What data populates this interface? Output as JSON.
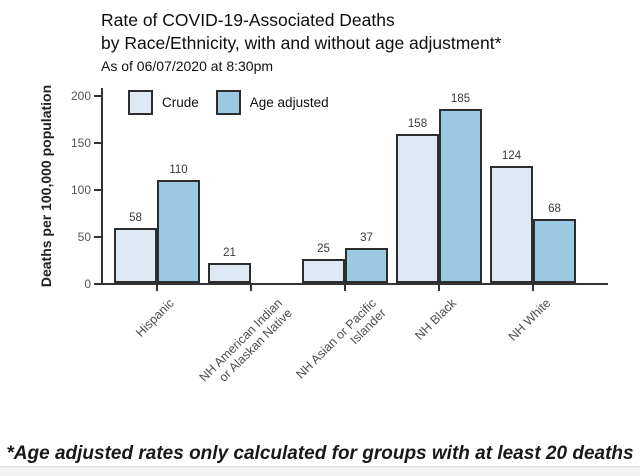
{
  "header": {
    "title_line1": "Rate of COVID-19-Associated Deaths",
    "title_line2": "by Race/Ethnicity, with and without age adjustment*",
    "subtitle": "As of 06/07/2020 at 8:30pm"
  },
  "footnote": "*Age adjusted rates only calculated for groups with at least 20 deaths",
  "chart_data": {
    "type": "bar",
    "title": "Rate of COVID-19-Associated Deaths by Race/Ethnicity, with and without age adjustment*",
    "subtitle": "As of 06/07/2020 at 8:30pm",
    "xlabel": "",
    "ylabel": "Deaths per 100,000 population",
    "ylim": [
      0,
      200
    ],
    "yticks": [
      0,
      50,
      100,
      150,
      200
    ],
    "grid": false,
    "legend_position": "top-left inside plot area",
    "value_labels_shown": true,
    "categories": [
      "Hispanic",
      "NH American Indian\nor Alaskan Native",
      "NH Asian or Pacific\nIslander",
      "NH Black",
      "NH White"
    ],
    "series": [
      {
        "name": "Crude",
        "color": "#dfe9f3",
        "values": [
          58,
          21,
          25,
          158,
          124
        ]
      },
      {
        "name": "Age adjusted",
        "color": "#9cc9e2",
        "values": [
          110,
          null,
          37,
          185,
          68
        ]
      }
    ],
    "note": "*Age adjusted rates only calculated for groups with at least 20 deaths"
  },
  "colors": {
    "background": "#ffffff",
    "bar_border": "#2d2d2d",
    "axis": "#333333",
    "tick_label": "#555555",
    "value_label": "#383838",
    "crude_fill": "#dfe9f3",
    "age_adjusted_fill": "#9cc9e2",
    "bottom_track": "#f1f1f1"
  }
}
